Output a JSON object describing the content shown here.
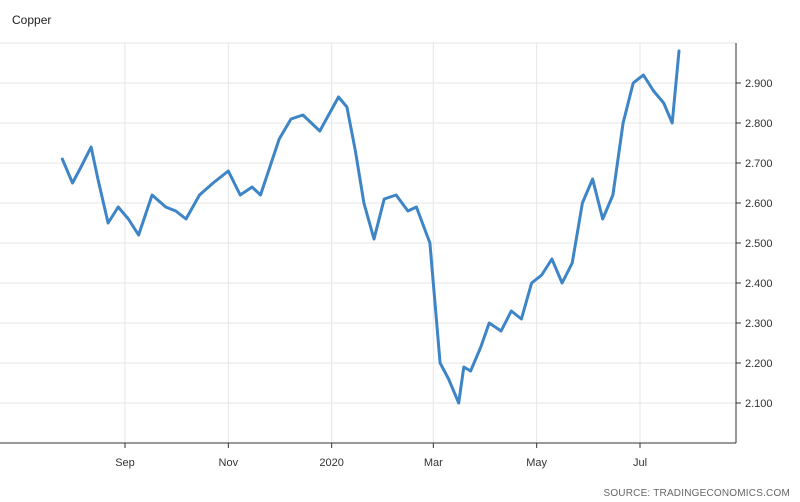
{
  "chart_data": {
    "type": "line",
    "title": "Copper",
    "source": "SOURCE: TRADINGECONOMICS.COM",
    "xlabel": "",
    "ylabel": "",
    "ylim": [
      2.0,
      3.0
    ],
    "x_tick_labels": [
      "Sep",
      "Nov",
      "2020",
      "Mar",
      "May",
      "Jul"
    ],
    "y_tick_labels": [
      "2.100",
      "2.200",
      "2.300",
      "2.400",
      "2.500",
      "2.600",
      "2.700",
      "2.800",
      "2.900"
    ],
    "grid": true,
    "legend": "none",
    "line_color": "#3d85c6",
    "series": [
      {
        "x": [
          "2019-07-26",
          "2019-08-01",
          "2019-08-06",
          "2019-08-12",
          "2019-08-16",
          "2019-08-22",
          "2019-08-28",
          "2019-09-03",
          "2019-09-09",
          "2019-09-17",
          "2019-09-25",
          "2019-10-01",
          "2019-10-07",
          "2019-10-15",
          "2019-10-23",
          "2019-11-01",
          "2019-11-08",
          "2019-11-15",
          "2019-11-20",
          "2019-12-01",
          "2019-12-08",
          "2019-12-15",
          "2019-12-25",
          "2020-01-05",
          "2020-01-10",
          "2020-01-15",
          "2020-01-20",
          "2020-01-26",
          "2020-02-01",
          "2020-02-08",
          "2020-02-15",
          "2020-02-20",
          "2020-02-28",
          "2020-03-05",
          "2020-03-10",
          "2020-03-16",
          "2020-03-19",
          "2020-03-23",
          "2020-03-29",
          "2020-04-03",
          "2020-04-10",
          "2020-04-16",
          "2020-04-22",
          "2020-04-28",
          "2020-05-04",
          "2020-05-10",
          "2020-05-16",
          "2020-05-22",
          "2020-05-28",
          "2020-06-03",
          "2020-06-09",
          "2020-06-15",
          "2020-06-21",
          "2020-06-27",
          "2020-07-03",
          "2020-07-09",
          "2020-07-15",
          "2020-07-20",
          "2020-07-24"
        ],
        "y": [
          2.71,
          2.65,
          2.69,
          2.74,
          2.66,
          2.55,
          2.59,
          2.56,
          2.52,
          2.62,
          2.59,
          2.58,
          2.56,
          2.62,
          2.65,
          2.68,
          2.62,
          2.64,
          2.62,
          2.76,
          2.81,
          2.82,
          2.78,
          2.865,
          2.84,
          2.73,
          2.6,
          2.51,
          2.61,
          2.62,
          2.58,
          2.59,
          2.5,
          2.2,
          2.16,
          2.1,
          2.19,
          2.18,
          2.24,
          2.3,
          2.28,
          2.33,
          2.31,
          2.4,
          2.42,
          2.46,
          2.4,
          2.45,
          2.6,
          2.66,
          2.56,
          2.62,
          2.8,
          2.9,
          2.92,
          2.88,
          2.85,
          2.8,
          2.98
        ]
      }
    ]
  }
}
